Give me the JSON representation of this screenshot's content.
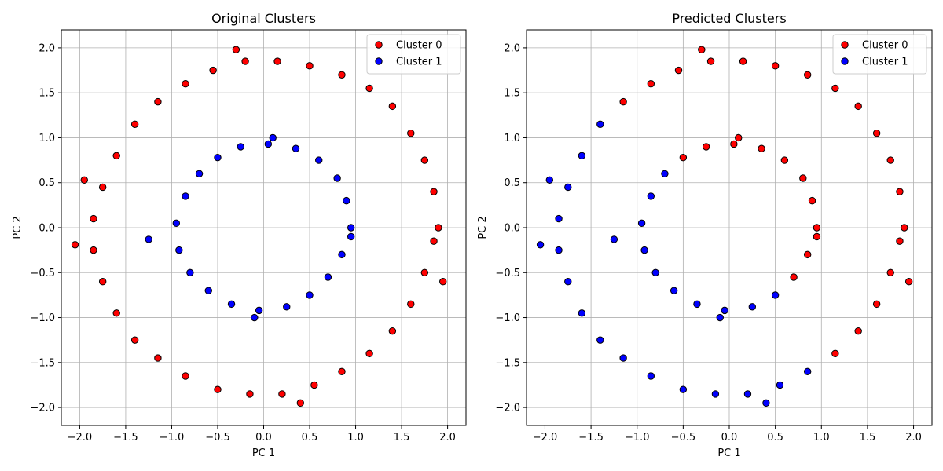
{
  "chart_data": [
    {
      "type": "scatter",
      "title": "Original Clusters",
      "xlabel": "PC 1",
      "ylabel": "PC 2",
      "xlim": [
        -2.2,
        2.2
      ],
      "ylim": [
        -2.2,
        2.2
      ],
      "xticks": [
        -2.0,
        -1.5,
        -1.0,
        -0.5,
        0.0,
        0.5,
        1.0,
        1.5,
        2.0
      ],
      "yticks": [
        -2.0,
        -1.5,
        -1.0,
        -0.5,
        0.0,
        0.5,
        1.0,
        1.5,
        2.0
      ],
      "xtick_labels": [
        "−2.0",
        "−1.5",
        "−1.0",
        "−0.5",
        "0.0",
        "0.5",
        "1.0",
        "1.5",
        "2.0"
      ],
      "ytick_labels": [
        "−2.0",
        "−1.5",
        "−1.0",
        "−0.5",
        "0.0",
        "0.5",
        "1.0",
        "1.5",
        "2.0"
      ],
      "grid": true,
      "legend_position": "top-right",
      "series": [
        {
          "name": "Cluster 0",
          "color": "#ff0000",
          "points": [
            [
              1.9,
              0.0
            ],
            [
              1.85,
              0.4
            ],
            [
              1.75,
              0.75
            ],
            [
              1.6,
              1.05
            ],
            [
              1.4,
              1.35
            ],
            [
              1.15,
              1.55
            ],
            [
              0.85,
              1.7
            ],
            [
              0.5,
              1.8
            ],
            [
              0.15,
              1.85
            ],
            [
              -0.2,
              1.85
            ],
            [
              -0.55,
              1.75
            ],
            [
              -0.85,
              1.6
            ],
            [
              -1.15,
              1.4
            ],
            [
              -1.4,
              1.15
            ],
            [
              -1.6,
              0.8
            ],
            [
              -1.75,
              0.45
            ],
            [
              -1.85,
              0.1
            ],
            [
              -1.85,
              -0.25
            ],
            [
              -1.75,
              -0.6
            ],
            [
              -1.6,
              -0.95
            ],
            [
              -1.4,
              -1.25
            ],
            [
              -1.15,
              -1.45
            ],
            [
              -0.85,
              -1.65
            ],
            [
              -0.5,
              -1.8
            ],
            [
              -0.15,
              -1.85
            ],
            [
              0.2,
              -1.85
            ],
            [
              0.55,
              -1.75
            ],
            [
              0.85,
              -1.6
            ],
            [
              1.15,
              -1.4
            ],
            [
              1.4,
              -1.15
            ],
            [
              1.6,
              -0.85
            ],
            [
              1.75,
              -0.5
            ],
            [
              1.85,
              -0.15
            ],
            [
              1.95,
              -0.6
            ],
            [
              -2.05,
              -0.19
            ],
            [
              -1.95,
              0.53
            ],
            [
              -0.3,
              1.98
            ],
            [
              0.4,
              -1.95
            ]
          ]
        },
        {
          "name": "Cluster 1",
          "color": "#0000ff",
          "points": [
            [
              0.95,
              0.0
            ],
            [
              0.9,
              0.3
            ],
            [
              0.8,
              0.55
            ],
            [
              0.6,
              0.75
            ],
            [
              0.35,
              0.88
            ],
            [
              0.05,
              0.93
            ],
            [
              -0.25,
              0.9
            ],
            [
              -0.5,
              0.78
            ],
            [
              -0.7,
              0.6
            ],
            [
              -0.85,
              0.35
            ],
            [
              -0.95,
              0.05
            ],
            [
              -0.92,
              -0.25
            ],
            [
              -0.8,
              -0.5
            ],
            [
              -0.6,
              -0.7
            ],
            [
              -0.35,
              -0.85
            ],
            [
              -0.05,
              -0.92
            ],
            [
              0.25,
              -0.88
            ],
            [
              0.5,
              -0.75
            ],
            [
              0.7,
              -0.55
            ],
            [
              0.85,
              -0.3
            ],
            [
              0.95,
              -0.1
            ],
            [
              -1.25,
              -0.13
            ],
            [
              0.1,
              1.0
            ],
            [
              -0.1,
              -1.0
            ]
          ]
        }
      ]
    },
    {
      "type": "scatter",
      "title": "Predicted Clusters",
      "xlabel": "PC 1",
      "ylabel": "PC 2",
      "xlim": [
        -2.2,
        2.2
      ],
      "ylim": [
        -2.2,
        2.2
      ],
      "xticks": [
        -2.0,
        -1.5,
        -1.0,
        -0.5,
        0.0,
        0.5,
        1.0,
        1.5,
        2.0
      ],
      "yticks": [
        -2.0,
        -1.5,
        -1.0,
        -0.5,
        0.0,
        0.5,
        1.0,
        1.5,
        2.0
      ],
      "xtick_labels": [
        "−2.0",
        "−1.5",
        "−1.0",
        "−0.5",
        "0.0",
        "0.5",
        "1.0",
        "1.5",
        "2.0"
      ],
      "ytick_labels": [
        "−2.0",
        "−1.5",
        "−1.0",
        "−0.5",
        "0.0",
        "0.5",
        "1.0",
        "1.5",
        "2.0"
      ],
      "grid": true,
      "legend_position": "top-right",
      "series": [
        {
          "name": "Cluster 0",
          "color": "#ff0000",
          "points": [
            [
              1.9,
              0.0
            ],
            [
              1.85,
              0.4
            ],
            [
              1.75,
              0.75
            ],
            [
              1.6,
              1.05
            ],
            [
              1.4,
              1.35
            ],
            [
              1.15,
              1.55
            ],
            [
              0.85,
              1.7
            ],
            [
              0.5,
              1.8
            ],
            [
              0.15,
              1.85
            ],
            [
              -0.2,
              1.85
            ],
            [
              -0.55,
              1.75
            ],
            [
              -0.85,
              1.6
            ],
            [
              -1.15,
              1.4
            ],
            [
              1.85,
              -0.15
            ],
            [
              1.75,
              -0.5
            ],
            [
              1.6,
              -0.85
            ],
            [
              1.4,
              -1.15
            ],
            [
              1.15,
              -1.4
            ],
            [
              1.95,
              -0.6
            ],
            [
              -0.3,
              1.98
            ],
            [
              0.95,
              0.0
            ],
            [
              0.9,
              0.3
            ],
            [
              0.8,
              0.55
            ],
            [
              0.6,
              0.75
            ],
            [
              0.35,
              0.88
            ],
            [
              0.05,
              0.93
            ],
            [
              -0.25,
              0.9
            ],
            [
              -0.5,
              0.78
            ],
            [
              0.85,
              -0.3
            ],
            [
              0.7,
              -0.55
            ],
            [
              0.95,
              -0.1
            ],
            [
              0.1,
              1.0
            ]
          ]
        },
        {
          "name": "Cluster 1",
          "color": "#0000ff",
          "points": [
            [
              -1.4,
              1.15
            ],
            [
              -1.6,
              0.8
            ],
            [
              -1.75,
              0.45
            ],
            [
              -1.85,
              0.1
            ],
            [
              -1.85,
              -0.25
            ],
            [
              -1.75,
              -0.6
            ],
            [
              -1.6,
              -0.95
            ],
            [
              -1.4,
              -1.25
            ],
            [
              -1.15,
              -1.45
            ],
            [
              -0.85,
              -1.65
            ],
            [
              -0.5,
              -1.8
            ],
            [
              -0.15,
              -1.85
            ],
            [
              0.2,
              -1.85
            ],
            [
              0.55,
              -1.75
            ],
            [
              0.85,
              -1.6
            ],
            [
              -2.05,
              -0.19
            ],
            [
              -1.95,
              0.53
            ],
            [
              0.4,
              -1.95
            ],
            [
              -0.7,
              0.6
            ],
            [
              -0.85,
              0.35
            ],
            [
              -0.95,
              0.05
            ],
            [
              -0.92,
              -0.25
            ],
            [
              -0.8,
              -0.5
            ],
            [
              -0.6,
              -0.7
            ],
            [
              -0.35,
              -0.85
            ],
            [
              -0.05,
              -0.92
            ],
            [
              0.25,
              -0.88
            ],
            [
              0.5,
              -0.75
            ],
            [
              -1.25,
              -0.13
            ],
            [
              -0.1,
              -1.0
            ]
          ]
        }
      ]
    }
  ]
}
